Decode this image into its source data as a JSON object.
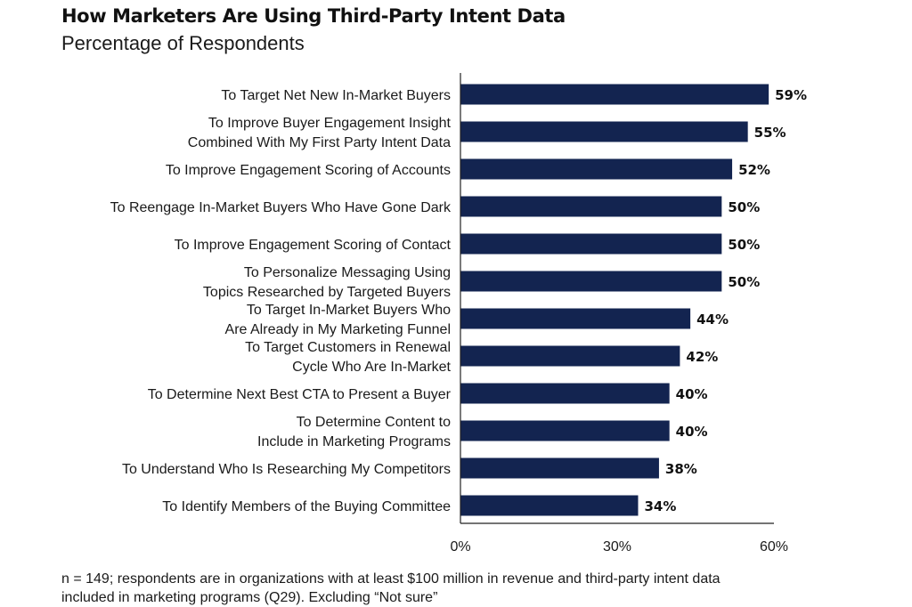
{
  "title": "How Marketers Are Using Third-Party Intent Data",
  "subtitle": "Percentage of Respondents",
  "footnote_line1": "n = 149; respondents are in organizations with at least $100 million in revenue and third-party intent data",
  "footnote_line2": "included in marketing programs (Q29). Excluding “Not sure”",
  "chart_data": {
    "type": "bar",
    "orientation": "horizontal",
    "categories": [
      [
        "To Target Net New In-Market Buyers"
      ],
      [
        "To Improve Buyer Engagement Insight",
        "Combined With My First Party Intent Data"
      ],
      [
        "To Improve Engagement Scoring of Accounts"
      ],
      [
        "To Reengage In-Market Buyers Who Have Gone Dark"
      ],
      [
        "To Improve Engagement Scoring of Contact"
      ],
      [
        "To Personalize Messaging Using",
        "Topics Researched by Targeted Buyers"
      ],
      [
        "To Target In-Market Buyers Who",
        "Are Already in My Marketing Funnel"
      ],
      [
        "To Target Customers in Renewal",
        "Cycle Who Are In-Market"
      ],
      [
        "To Determine Next Best CTA to Present a Buyer"
      ],
      [
        "To Determine Content to",
        "Include in Marketing Programs"
      ],
      [
        "To Understand Who Is Researching My Competitors"
      ],
      [
        "To Identify Members of the Buying Committee"
      ]
    ],
    "values": [
      59,
      55,
      52,
      50,
      50,
      50,
      44,
      42,
      40,
      40,
      38,
      34
    ],
    "value_labels": [
      "59%",
      "55%",
      "52%",
      "50%",
      "50%",
      "50%",
      "44%",
      "42%",
      "40%",
      "40%",
      "38%",
      "34%"
    ],
    "xlim": [
      0,
      60
    ],
    "xticks": [
      0,
      30,
      60
    ],
    "xtick_labels": [
      "0%",
      "30%",
      "60%"
    ],
    "bar_color": "#132450",
    "grid": false
  }
}
